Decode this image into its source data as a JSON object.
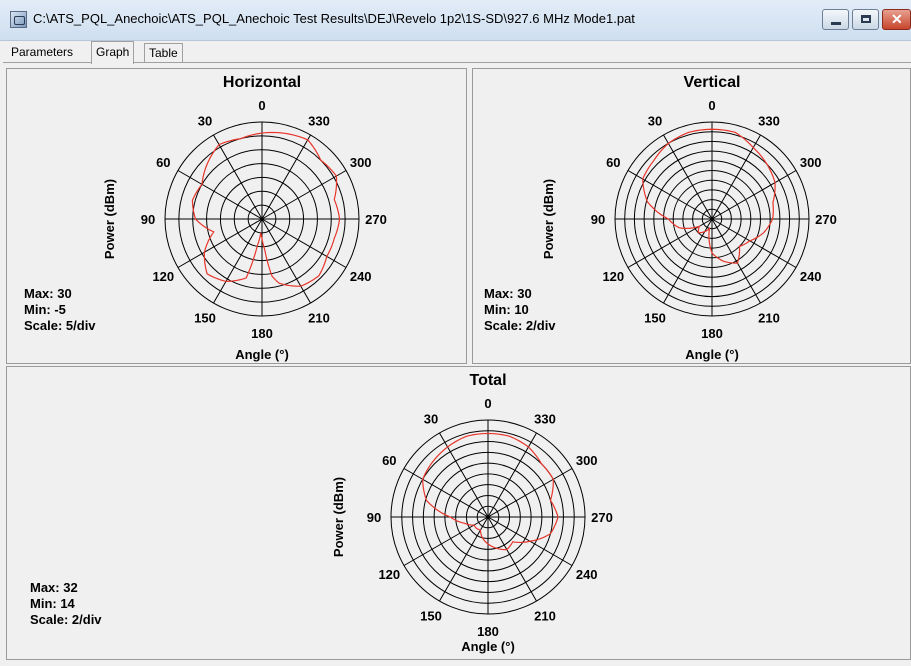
{
  "window": {
    "title": "C:\\ATS_PQL_Anechoic\\ATS_PQL_Anechoic Test Results\\DEJ\\Revelo 1p2\\1S-SD\\927.6 MHz Mode1.pat"
  },
  "tabs": [
    "Parameters",
    "Graph",
    "Table"
  ],
  "colors": {
    "trace": "#e8352a",
    "grid": "#000000",
    "background": "#f0f0f0"
  },
  "chart_data": [
    {
      "type": "polar",
      "title": "Horizontal",
      "xlabel": "Angle (°)",
      "ylabel": "Power (dBm)",
      "angle_labels": [
        "0",
        "330",
        "300",
        "270",
        "240",
        "210",
        "180",
        "150",
        "120",
        "90",
        "60",
        "30"
      ],
      "direction": "clockwise-from-top, 0 at top, 270 at right",
      "rings": 7,
      "stats": {
        "max": "Max: 30",
        "min": "Min: -5",
        "scale": "Scale: 5/div"
      },
      "series": [
        {
          "angles": [
            0,
            15,
            30,
            45,
            60,
            75,
            90,
            105,
            120,
            135,
            150,
            165,
            170,
            175,
            180,
            185,
            190,
            195,
            210,
            225,
            240,
            255,
            270,
            285,
            300,
            315,
            330,
            345
          ],
          "values": [
            26,
            25,
            26,
            23,
            20,
            21,
            19,
            13,
            19,
            23,
            21,
            17,
            5,
            0,
            2,
            6,
            16,
            19,
            23,
            24,
            22,
            22,
            23,
            22,
            26,
            25,
            28,
            27
          ]
        }
      ]
    },
    {
      "type": "polar",
      "title": "Vertical",
      "xlabel": "Angle (°)",
      "ylabel": "Power (dBm)",
      "angle_labels": [
        "0",
        "330",
        "300",
        "270",
        "240",
        "210",
        "180",
        "150",
        "120",
        "90",
        "60",
        "30"
      ],
      "direction": "clockwise-from-top, 0 at top, 270 at right",
      "rings": 10,
      "stats": {
        "max": "Max: 30",
        "min": "Min: 10",
        "scale": "Scale: 2/div"
      },
      "series": [
        {
          "angles": [
            0,
            15,
            30,
            45,
            60,
            75,
            90,
            105,
            120,
            135,
            150,
            165,
            180,
            195,
            210,
            225,
            240,
            255,
            270,
            285,
            300,
            315,
            330,
            345
          ],
          "values": [
            28.5,
            28.5,
            28,
            27,
            26.5,
            23.8,
            19,
            17,
            13,
            14,
            13,
            12,
            17,
            19,
            20.5,
            18,
            19,
            21,
            22.5,
            23,
            25,
            26,
            27,
            28.5
          ]
        }
      ]
    },
    {
      "type": "polar",
      "title": "Total",
      "xlabel": "Angle (°)",
      "ylabel": "Power (dBm)",
      "angle_labels": [
        "0",
        "330",
        "300",
        "270",
        "240",
        "210",
        "180",
        "150",
        "120",
        "90",
        "60",
        "30"
      ],
      "direction": "clockwise-from-top, 0 at top, 270 at right",
      "rings": 9,
      "stats": {
        "max": "Max: 32",
        "min": "Min: 14",
        "scale": "Scale: 2/div"
      },
      "series": [
        {
          "angles": [
            0,
            15,
            30,
            45,
            60,
            75,
            90,
            105,
            120,
            135,
            150,
            165,
            180,
            195,
            210,
            225,
            240,
            255,
            270,
            285,
            300,
            315,
            330,
            345
          ],
          "values": [
            29.5,
            29.5,
            29,
            28.5,
            28,
            25.8,
            21,
            18.5,
            17,
            17,
            16.8,
            18,
            19,
            20,
            21,
            20.5,
            23,
            26,
            27,
            26,
            28,
            28,
            29,
            29.5
          ]
        }
      ]
    }
  ]
}
